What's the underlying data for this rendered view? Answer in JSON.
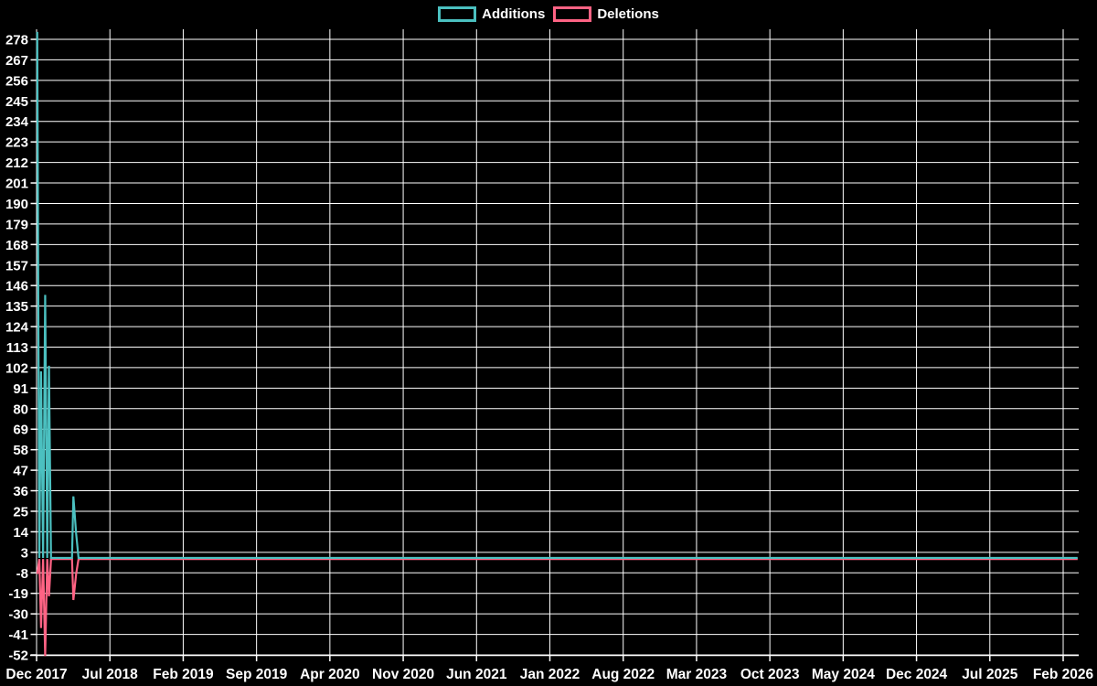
{
  "legend": {
    "items": [
      {
        "label": "Additions",
        "color": "#4bc0c0"
      },
      {
        "label": "Deletions",
        "color": "#ff6384"
      }
    ]
  },
  "chart_data": {
    "type": "line",
    "title": "",
    "xlabel": "",
    "ylabel": "",
    "background_color": "#000000",
    "grid_color": "#ffffff",
    "text_color": "#ffffff",
    "grid": true,
    "legend_position": "top-center",
    "x_axis": {
      "tick_labels": [
        "Dec 2017",
        "Jul 2018",
        "Feb 2019",
        "Sep 2019",
        "Apr 2020",
        "Nov 2020",
        "Jun 2021",
        "Jan 2022",
        "Aug 2022",
        "Mar 2023",
        "Oct 2023",
        "May 2024",
        "Dec 2024",
        "Jul 2025",
        "Feb 2026"
      ]
    },
    "y_axis": {
      "tick_labels": [
        278,
        267,
        256,
        245,
        234,
        223,
        212,
        201,
        190,
        179,
        168,
        157,
        146,
        135,
        124,
        113,
        102,
        91,
        80,
        69,
        58,
        47,
        36,
        25,
        14,
        3,
        -8,
        -19,
        -30,
        -41,
        -52
      ],
      "range": [
        -52,
        283
      ]
    },
    "series": [
      {
        "name": "Additions",
        "color": "#4bc0c0",
        "points": [
          [
            "2017-12-03",
            282
          ],
          [
            "2017-12-09",
            0
          ],
          [
            "2017-12-14",
            100
          ],
          [
            "2017-12-20",
            0
          ],
          [
            "2017-12-26",
            141
          ],
          [
            "2018-01-01",
            0
          ],
          [
            "2018-01-06",
            103
          ],
          [
            "2018-01-12",
            0
          ],
          [
            "2018-03-14",
            0
          ],
          [
            "2018-03-18",
            33
          ],
          [
            "2018-03-26",
            13
          ],
          [
            "2018-04-02",
            0
          ],
          [
            "2026-03-15",
            0
          ]
        ]
      },
      {
        "name": "Deletions",
        "color": "#ff6384",
        "points": [
          [
            "2017-12-03",
            -8
          ],
          [
            "2017-12-09",
            0
          ],
          [
            "2017-12-14",
            -37
          ],
          [
            "2017-12-20",
            0
          ],
          [
            "2017-12-26",
            -52
          ],
          [
            "2018-01-01",
            0
          ],
          [
            "2018-01-06",
            -20
          ],
          [
            "2018-01-12",
            0
          ],
          [
            "2018-03-14",
            0
          ],
          [
            "2018-03-18",
            -22
          ],
          [
            "2018-03-26",
            -8
          ],
          [
            "2018-04-02",
            0
          ],
          [
            "2026-03-15",
            0
          ]
        ]
      }
    ]
  }
}
